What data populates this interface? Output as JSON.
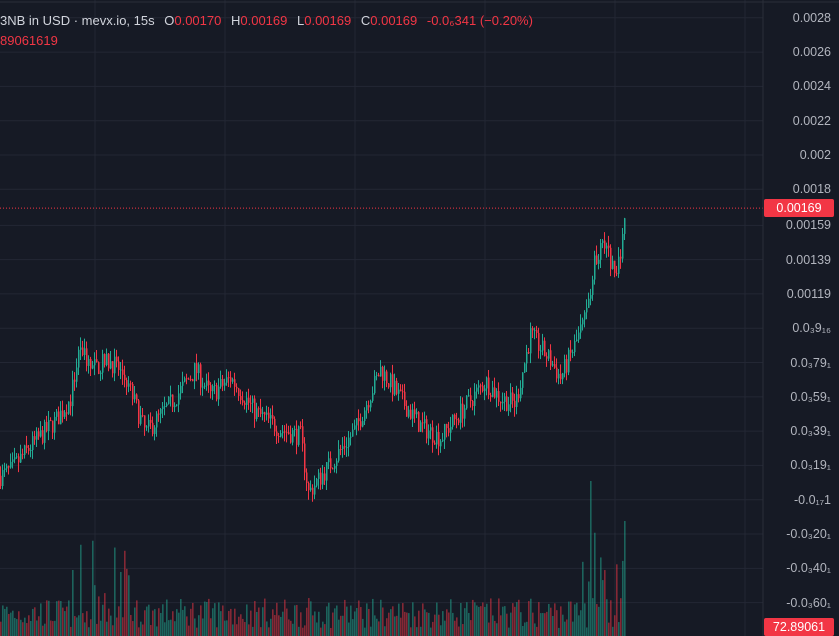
{
  "legend": {
    "symbol": "3NB in USD · mevx.io, 15s",
    "open_label": "O",
    "open": "0.00170",
    "high_label": "H",
    "high": "0.00169",
    "low_label": "L",
    "low": "0.00169",
    "close_label": "C",
    "close": "0.00169",
    "change": "-0.0₆341 (−0.20%)",
    "volume": "89061619"
  },
  "price_axis": [
    {
      "text": "0.0028",
      "value": 0.0028
    },
    {
      "text": "0.0026",
      "value": 0.0026
    },
    {
      "text": "0.0024",
      "value": 0.0024
    },
    {
      "text": "0.0022",
      "value": 0.0022
    },
    {
      "text": "0.002",
      "value": 0.002
    },
    {
      "text": "0.0018",
      "value": 0.0018
    },
    {
      "text": "0.00159",
      "value": 0.00159
    },
    {
      "text": "0.00139",
      "value": 0.00139
    },
    {
      "text": "0.00119",
      "value": 0.00119
    },
    {
      "text": "0.0₃9₁₆",
      "value": 0.00099
    },
    {
      "text": "0.0₃79₁",
      "value": 0.00079
    },
    {
      "text": "0.0₃59₁",
      "value": 0.00059
    },
    {
      "text": "0.0₃39₁",
      "value": 0.00039
    },
    {
      "text": "0.0₃19₁",
      "value": 0.00019
    },
    {
      "text": "-0.0₁₇1",
      "value": -1e-05
    },
    {
      "text": "-0.0₃20₁",
      "value": -0.00021
    },
    {
      "text": "-0.0₃40₁",
      "value": -0.00041
    },
    {
      "text": "-0.0₃60₁",
      "value": -0.00061
    }
  ],
  "last_price_tag": "0.00169",
  "last_volume_tag": "72.89061",
  "colors": {
    "background": "#161a25",
    "up": "#22ab94",
    "down": "#f23645",
    "grid": "#232734",
    "axis_text": "#b2b5be"
  },
  "chart_data": {
    "type": "candlestick",
    "interval": "15s",
    "last_price": 0.00169,
    "y_axis_range": [
      -0.0007,
      0.00285
    ],
    "price_trend": [
      [
        0,
        0.00013
      ],
      [
        10,
        0.00016
      ],
      [
        30,
        0.0003
      ],
      [
        55,
        0.00045
      ],
      [
        70,
        0.00058
      ],
      [
        80,
        0.0009
      ],
      [
        90,
        0.00075
      ],
      [
        110,
        0.0008
      ],
      [
        125,
        0.0007
      ],
      [
        145,
        0.00038
      ],
      [
        170,
        0.00055
      ],
      [
        195,
        0.00075
      ],
      [
        210,
        0.0006
      ],
      [
        230,
        0.0007
      ],
      [
        255,
        0.0005
      ],
      [
        280,
        0.0004
      ],
      [
        300,
        0.00036
      ],
      [
        308,
        3e-05
      ],
      [
        330,
        0.0002
      ],
      [
        355,
        0.0004
      ],
      [
        380,
        0.00075
      ],
      [
        400,
        0.00058
      ],
      [
        420,
        0.00042
      ],
      [
        440,
        0.00035
      ],
      [
        460,
        0.0005
      ],
      [
        485,
        0.00068
      ],
      [
        500,
        0.00058
      ],
      [
        515,
        0.00055
      ],
      [
        530,
        0.00095
      ],
      [
        550,
        0.0008
      ],
      [
        560,
        0.0007
      ],
      [
        575,
        0.0009
      ],
      [
        585,
        0.00105
      ],
      [
        595,
        0.0014
      ],
      [
        605,
        0.00148
      ],
      [
        615,
        0.00128
      ],
      [
        620,
        0.00145
      ],
      [
        625,
        0.00169
      ]
    ],
    "volume_trend": "low baseline with spikes near the start and a large spike near the latest bars"
  }
}
